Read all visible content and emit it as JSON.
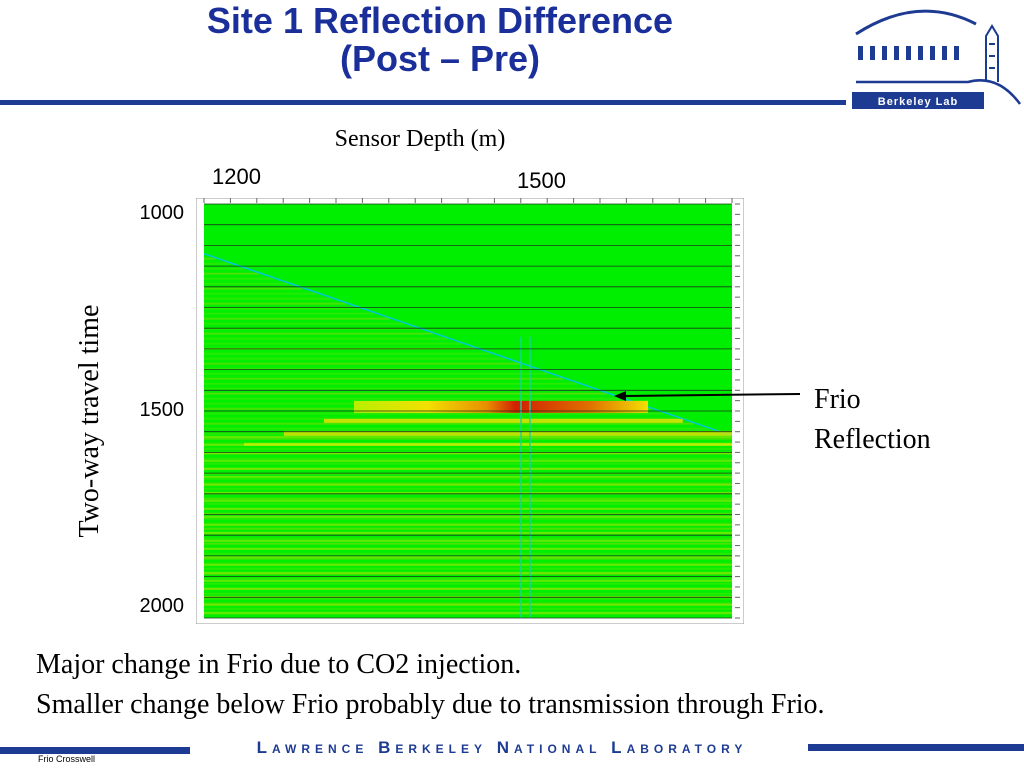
{
  "slide": {
    "title_line1": "Site 1 Reflection Difference",
    "title_line2": "(Post – Pre)",
    "logo_text": "Berkeley Lab",
    "annotation_line1": "Frio",
    "annotation_line2": "Reflection",
    "caption_line1": "Major change in Frio due to CO2 injection.",
    "caption_line2": "Smaller change below Frio probably due to transmission through Frio.",
    "footer_text": "Lawrence Berkeley National Laboratory",
    "slide_id": "Frio Crosswell"
  },
  "colors": {
    "title": "#1a2f9a",
    "rule": "#1d3b93",
    "plot_background": "#00ee00",
    "trace_line": "#1a3a1a",
    "positive_anomaly": "#f2e000",
    "strong_anomaly": "#d02000",
    "negative_anomaly": "#00c8d8"
  },
  "chart_data": {
    "type": "heatmap",
    "title": "",
    "xlabel": "Sensor Depth (m)",
    "ylabel": "Two-way travel time",
    "x_ticks": [
      "1200",
      "1500"
    ],
    "y_ticks": [
      "1000",
      "1500",
      "2000"
    ],
    "ylim": [
      1000,
      2000
    ],
    "y_inverted": true,
    "frio_reflection_time": 1490,
    "strong_anomaly_depth_range": [
      1400,
      1560
    ],
    "notes_on_pattern": "Difference is near zero (green) above a diagonal first-arrival front; banded anomalies appear below it, strongest at the Frio reflection."
  }
}
